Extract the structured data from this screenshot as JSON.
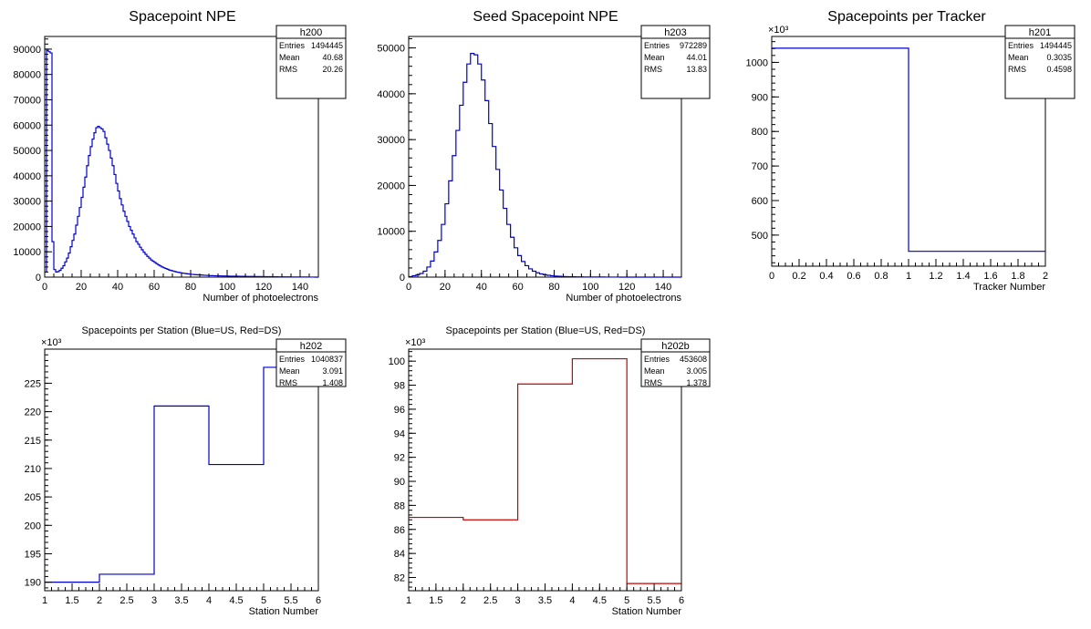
{
  "chart_data": [
    {
      "type": "histogram",
      "title": "Spacepoint NPE",
      "xlabel": "Number of photoelectrons",
      "ylabel": "",
      "exponent_label": "",
      "xlim": [
        0,
        150
      ],
      "ylim": [
        0,
        95000
      ],
      "xticks": [
        0,
        20,
        40,
        60,
        80,
        100,
        120,
        140
      ],
      "yticks": [
        0,
        10000,
        20000,
        30000,
        40000,
        50000,
        60000,
        70000,
        80000,
        90000
      ],
      "color": "#0000cc",
      "bin_edges_start": 0,
      "bin_width": 1,
      "values": [
        2000,
        89500,
        89000,
        88500,
        14000,
        3000,
        2000,
        2200,
        2700,
        3500,
        4500,
        6000,
        7500,
        9500,
        12000,
        14500,
        17000,
        20500,
        24000,
        27500,
        31500,
        35500,
        39500,
        44000,
        48000,
        51500,
        54500,
        57000,
        59000,
        59500,
        59000,
        58500,
        57500,
        55000,
        52500,
        50000,
        47000,
        44000,
        40500,
        37000,
        34000,
        31000,
        28500,
        26000,
        24000,
        22000,
        20000,
        18500,
        17000,
        15500,
        14000,
        13000,
        11800,
        10800,
        9800,
        9000,
        8200,
        7500,
        6800,
        6300,
        5800,
        5300,
        4800,
        4400,
        4000,
        3700,
        3400,
        3100,
        2800,
        2600,
        2400,
        2200,
        2000,
        1900,
        1750,
        1600,
        1500,
        1400,
        1300,
        1200,
        1100,
        1050,
        1000,
        950,
        900,
        850,
        800,
        750,
        700,
        650,
        600,
        580,
        560,
        540,
        520,
        500,
        480,
        460,
        440,
        420,
        400,
        390,
        380,
        370,
        360,
        350,
        340,
        330,
        320,
        310,
        300,
        290,
        280,
        270,
        260,
        250,
        240,
        230,
        220,
        210,
        200,
        190,
        180,
        170,
        160,
        150,
        140,
        130,
        120,
        110,
        100,
        95,
        90,
        85,
        80,
        75,
        70,
        65,
        60,
        55,
        50,
        45,
        40,
        35,
        30,
        25,
        20,
        15,
        10,
        5
      ],
      "stats": {
        "name": "h200",
        "entries": "1494445",
        "mean": "40.68",
        "rms": "20.26"
      }
    },
    {
      "type": "histogram",
      "title": "Seed Spacepoint NPE",
      "xlabel": "Number of photoelectrons",
      "ylabel": "",
      "exponent_label": "",
      "xlim": [
        0,
        150
      ],
      "ylim": [
        0,
        52500
      ],
      "xticks": [
        0,
        20,
        40,
        60,
        80,
        100,
        120,
        140
      ],
      "yticks": [
        0,
        10000,
        20000,
        30000,
        40000,
        50000
      ],
      "color": "#0000cc",
      "bin_edges_start": 0,
      "bin_width": 2,
      "values": [
        100,
        300,
        500,
        800,
        1300,
        2200,
        3500,
        5500,
        8000,
        11500,
        16000,
        21000,
        26500,
        32000,
        37500,
        42500,
        46500,
        48800,
        48500,
        46500,
        43000,
        38500,
        33500,
        28500,
        23500,
        19000,
        15000,
        11500,
        8700,
        6400,
        4700,
        3400,
        2500,
        1800,
        1300,
        950,
        700,
        520,
        400,
        300,
        230,
        180,
        140,
        110,
        90,
        75,
        60,
        50,
        40,
        35,
        30,
        25,
        20,
        18,
        15,
        12,
        10,
        8,
        6,
        5,
        4,
        3,
        3,
        2,
        2,
        1,
        1,
        1,
        1,
        1,
        1,
        1,
        1,
        1,
        1
      ],
      "stats": {
        "name": "h203",
        "entries": "972289",
        "mean": "44.01",
        "rms": "13.83"
      }
    },
    {
      "type": "histogram",
      "title": "Spacepoints per Tracker",
      "xlabel": "Tracker Number",
      "ylabel": "",
      "exponent_label": "×10³",
      "xlim": [
        0,
        2
      ],
      "ylim": [
        410,
        1075
      ],
      "xticks": [
        0,
        0.2,
        0.4,
        0.6,
        0.8,
        1,
        1.2,
        1.4,
        1.6,
        1.8,
        2
      ],
      "yticks": [
        500,
        600,
        700,
        800,
        900,
        1000
      ],
      "color": "#0000cc",
      "bin_edges_start": 0,
      "bin_width": 1,
      "values": [
        1041,
        453
      ],
      "stats": {
        "name": "h201",
        "entries": "1494445",
        "mean": "0.3035",
        "rms": "0.4598"
      }
    },
    {
      "type": "histogram",
      "title": "Spacepoints per Station (Blue=US, Red=DS)",
      "xlabel": "Station Number",
      "ylabel": "",
      "exponent_label": "×10³",
      "xlim": [
        1,
        6
      ],
      "ylim": [
        188.5,
        231
      ],
      "xticks": [
        1,
        1.5,
        2,
        2.5,
        3,
        3.5,
        4,
        4.5,
        5,
        5.5,
        6
      ],
      "yticks": [
        190,
        195,
        200,
        205,
        210,
        215,
        220,
        225
      ],
      "color": "#0000cc",
      "bin_edges_start": 1,
      "bin_width": 1,
      "values": [
        190,
        191.4,
        221,
        210.7,
        227.8
      ],
      "stats": {
        "name": "h202",
        "entries": "1040837",
        "mean": "3.091",
        "rms": "1.408"
      }
    },
    {
      "type": "histogram",
      "title": "Spacepoints per Station (Blue=US, Red=DS)",
      "xlabel": "Station Number",
      "ylabel": "",
      "exponent_label": "×10³",
      "xlim": [
        1,
        6
      ],
      "ylim": [
        80.9,
        101
      ],
      "xticks": [
        1,
        1.5,
        2,
        2.5,
        3,
        3.5,
        4,
        4.5,
        5,
        5.5,
        6
      ],
      "yticks": [
        82,
        84,
        86,
        88,
        90,
        92,
        94,
        96,
        98,
        100
      ],
      "color": "#cc0000",
      "bin_edges_start": 1,
      "bin_width": 1,
      "values": [
        87,
        86.8,
        98.1,
        100.2,
        81.5
      ],
      "stats": {
        "name": "h202b",
        "entries": "453608",
        "mean": "3.005",
        "rms": "1.378"
      }
    }
  ],
  "stats_labels": {
    "entries": "Entries",
    "mean": "Mean",
    "rms": "RMS"
  }
}
